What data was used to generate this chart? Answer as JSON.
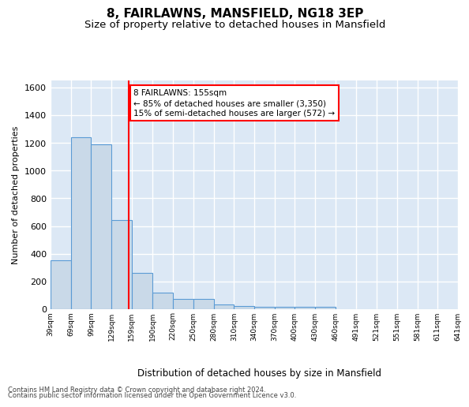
{
  "title": "8, FAIRLAWNS, MANSFIELD, NG18 3EP",
  "subtitle": "Size of property relative to detached houses in Mansfield",
  "xlabel": "Distribution of detached houses by size in Mansfield",
  "ylabel": "Number of detached properties",
  "footnote1": "Contains HM Land Registry data © Crown copyright and database right 2024.",
  "footnote2": "Contains public sector information licensed under the Open Government Licence v3.0.",
  "annotation_line1": "8 FAIRLAWNS: 155sqm",
  "annotation_line2": "← 85% of detached houses are smaller (3,350)",
  "annotation_line3": "15% of semi-detached houses are larger (572) →",
  "bar_left_edges": [
    39,
    69,
    99,
    129,
    159,
    190,
    220,
    250,
    280,
    310,
    340,
    370,
    400,
    430,
    460,
    491,
    521,
    551,
    581,
    611
  ],
  "bar_heights": [
    350,
    1240,
    1190,
    645,
    260,
    120,
    72,
    72,
    35,
    22,
    15,
    15,
    15,
    15,
    0,
    0,
    0,
    0,
    0,
    0
  ],
  "bar_widths": [
    30,
    30,
    30,
    30,
    31,
    30,
    30,
    30,
    30,
    30,
    30,
    30,
    30,
    30,
    31,
    30,
    30,
    30,
    30,
    30
  ],
  "tick_labels": [
    "39sqm",
    "69sqm",
    "99sqm",
    "129sqm",
    "159sqm",
    "190sqm",
    "220sqm",
    "250sqm",
    "280sqm",
    "310sqm",
    "340sqm",
    "370sqm",
    "400sqm",
    "430sqm",
    "460sqm",
    "491sqm",
    "521sqm",
    "551sqm",
    "581sqm",
    "611sqm",
    "641sqm"
  ],
  "bar_color": "#c9d9e8",
  "bar_edge_color": "#5b9bd5",
  "red_line_x": 155,
  "ylim": [
    0,
    1650
  ],
  "yticks": [
    0,
    200,
    400,
    600,
    800,
    1000,
    1200,
    1400,
    1600
  ],
  "xlim_left": 39,
  "xlim_right": 641,
  "background_color": "#dce8f5",
  "grid_color": "#ffffff",
  "fig_background": "#ffffff",
  "title_fontsize": 11,
  "subtitle_fontsize": 9.5
}
